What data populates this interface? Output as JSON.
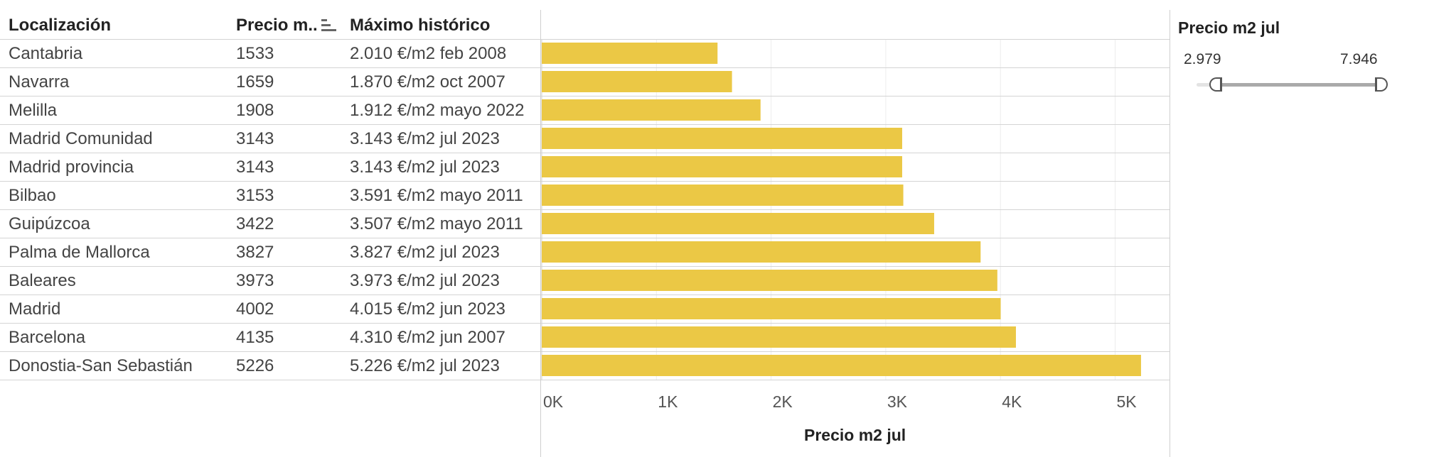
{
  "table": {
    "headers": {
      "location": "Localización",
      "price": "Precio m..",
      "max": "Máximo histórico"
    },
    "rows": [
      {
        "location": "Cantabria",
        "price": "1533",
        "max": "2.010 €/m2 feb 2008"
      },
      {
        "location": "Navarra",
        "price": "1659",
        "max": "1.870 €/m2 oct 2007"
      },
      {
        "location": "Melilla",
        "price": "1908",
        "max": "1.912 €/m2 mayo 2022"
      },
      {
        "location": "Madrid Comunidad",
        "price": "3143",
        "max": "3.143 €/m2 jul 2023"
      },
      {
        "location": "Madrid provincia",
        "price": "3143",
        "max": "3.143 €/m2 jul 2023"
      },
      {
        "location": "Bilbao",
        "price": "3153",
        "max": "3.591 €/m2 mayo 2011"
      },
      {
        "location": "Guipúzcoa",
        "price": "3422",
        "max": "3.507 €/m2 mayo 2011"
      },
      {
        "location": "Palma de Mallorca",
        "price": "3827",
        "max": "3.827 €/m2 jul 2023"
      },
      {
        "location": "Baleares",
        "price": "3973",
        "max": "3.973 €/m2 jul 2023"
      },
      {
        "location": "Madrid",
        "price": "4002",
        "max": "4.015 €/m2 jun 2023"
      },
      {
        "location": "Barcelona",
        "price": "4135",
        "max": "4.310 €/m2 jun 2007"
      },
      {
        "location": "Donostia-San Sebastián",
        "price": "5226",
        "max": "5.226 €/m2 jul 2023"
      }
    ]
  },
  "chart_data": {
    "type": "bar",
    "orientation": "horizontal",
    "categories": [
      "Cantabria",
      "Navarra",
      "Melilla",
      "Madrid Comunidad",
      "Madrid provincia",
      "Bilbao",
      "Guipúzcoa",
      "Palma de Mallorca",
      "Baleares",
      "Madrid",
      "Barcelona",
      "Donostia-San Sebastián"
    ],
    "values": [
      1533,
      1659,
      1908,
      3143,
      3143,
      3153,
      3422,
      3827,
      3973,
      4002,
      4135,
      5226
    ],
    "xlabel": "Precio m2 jul",
    "xlim": [
      0,
      5450
    ],
    "xticks": [
      0,
      1000,
      2000,
      3000,
      4000,
      5000
    ],
    "xtick_labels": [
      "0K",
      "1K",
      "2K",
      "3K",
      "4K",
      "5K"
    ],
    "grid": true,
    "bar_color": "#EBC845",
    "sort": "ascending"
  },
  "filter": {
    "title": "Precio m2 jul",
    "min_label": "2.979",
    "max_label": "7.946",
    "range_min": 2979,
    "range_max": 7946,
    "selected_min": 3400,
    "selected_max": 7946
  }
}
